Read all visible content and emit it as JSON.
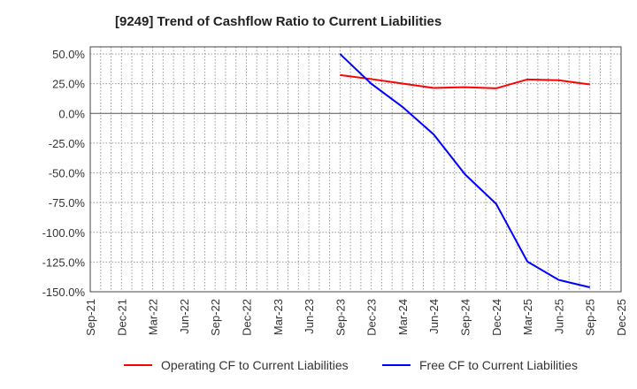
{
  "chart_data": {
    "type": "line",
    "title": "[9249]  Trend of Cashflow Ratio to Current Liabilities",
    "xlabel": "",
    "ylabel": "",
    "x_ticks": [
      "Sep-21",
      "Dec-21",
      "Mar-22",
      "Jun-22",
      "Sep-22",
      "Dec-22",
      "Mar-23",
      "Jun-23",
      "Sep-23",
      "Dec-23",
      "Mar-24",
      "Jun-24",
      "Sep-24",
      "Dec-24",
      "Mar-25",
      "Jun-25",
      "Sep-25",
      "Dec-25"
    ],
    "y_ticks": [
      "50.0%",
      "25.0%",
      "0.0%",
      "-25.0%",
      "-50.0%",
      "-75.0%",
      "-100.0%",
      "-125.0%",
      "-150.0%"
    ],
    "y_tick_values": [
      50,
      25,
      0,
      -25,
      -50,
      -75,
      -100,
      -125,
      -150
    ],
    "ylim": [
      -150,
      56
    ],
    "x": [
      "Sep-23",
      "Dec-23",
      "Mar-24",
      "Jun-24",
      "Sep-24",
      "Dec-24",
      "Mar-25",
      "Jun-25",
      "Sep-25"
    ],
    "x_index": [
      8,
      9,
      10,
      11,
      12,
      13,
      14,
      15,
      16
    ],
    "series": [
      {
        "name": "Operating CF to Current Liabilities",
        "color": "#ff0000",
        "values": [
          32.3,
          28.9,
          25.1,
          21.4,
          22.1,
          21.1,
          28.6,
          27.9,
          24.4
        ]
      },
      {
        "name": "Free CF to Current Liabilities",
        "color": "#0000ff",
        "values": [
          50.0,
          25.0,
          5.5,
          -17.7,
          -51.2,
          -76.1,
          -124.6,
          -140.0,
          -146.3
        ]
      }
    ],
    "grid": true,
    "legend": "bottom"
  }
}
